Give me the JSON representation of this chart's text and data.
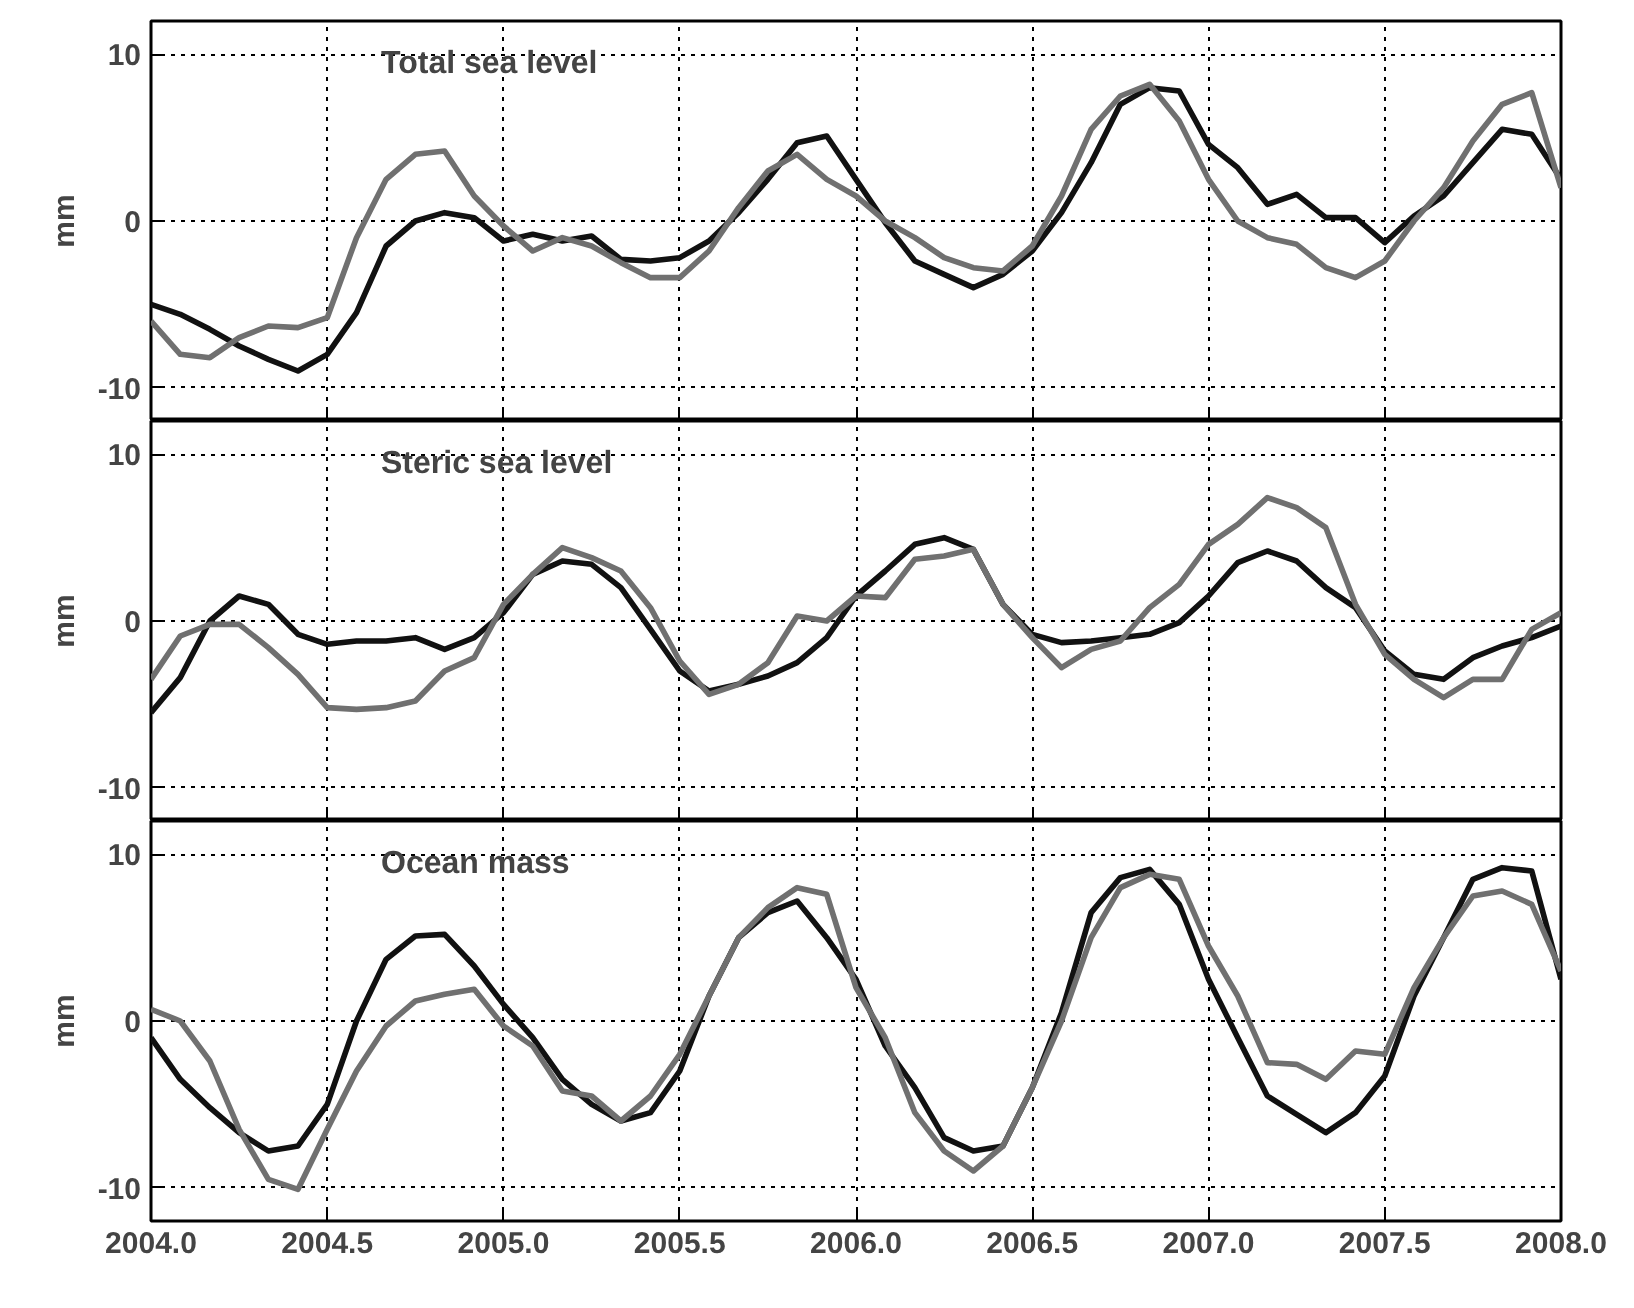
{
  "chart_data": [
    {
      "type": "line",
      "title": "Total sea level",
      "ylabel": "mm",
      "xlim": [
        2004,
        2008
      ],
      "ylim": [
        -12,
        12
      ],
      "yticks": [
        -10,
        0,
        10
      ],
      "xticks": [
        {
          "value": 2004,
          "label": null
        },
        {
          "value": 2004.5,
          "label": null
        },
        {
          "value": 2005,
          "label": null
        },
        {
          "value": 2005.5,
          "label": null
        },
        {
          "value": 2006,
          "label": null
        },
        {
          "value": 2006.5,
          "label": null
        },
        {
          "value": 2007,
          "label": null
        },
        {
          "value": 2007.5,
          "label": null
        },
        {
          "value": 2008,
          "label": null
        }
      ],
      "tick_labels": "y",
      "grid": true,
      "marker": "none",
      "line_style": "solid",
      "x": [
        2004,
        2004.083,
        2004.167,
        2004.25,
        2004.333,
        2004.417,
        2004.5,
        2004.583,
        2004.667,
        2004.75,
        2004.833,
        2004.917,
        2005,
        2005.083,
        2005.167,
        2005.25,
        2005.333,
        2005.417,
        2005.5,
        2005.583,
        2005.667,
        2005.75,
        2005.833,
        2005.917,
        2006,
        2006.083,
        2006.167,
        2006.25,
        2006.333,
        2006.417,
        2006.5,
        2006.583,
        2006.667,
        2006.75,
        2006.833,
        2006.917,
        2007,
        2007.083,
        2007.167,
        2007.25,
        2007.333,
        2007.417,
        2007.5,
        2007.583,
        2007.667,
        2007.75,
        2007.833,
        2007.917,
        2008
      ],
      "series": [
        {
          "color": "#111111",
          "values": [
            -5,
            -5.6,
            -6.5,
            -7.5,
            -8.3,
            -9,
            -8,
            -5.5,
            -1.5,
            0,
            0.5,
            0.2,
            -1.2,
            -0.8,
            -1.2,
            -0.9,
            -2.3,
            -2.4,
            -2.2,
            -1.2,
            0.5,
            2.5,
            4.7,
            5.1,
            2.5,
            -0.1,
            -2.4,
            -3.2,
            -4,
            -3.2,
            -1.8,
            0.5,
            3.5,
            7,
            8,
            7.8,
            4.6,
            3.2,
            1,
            1.6,
            0.2,
            0.2,
            -1.3,
            0.3,
            1.5,
            3.5,
            5.5,
            5.2,
            2.5
          ]
        },
        {
          "color": "#707070",
          "values": [
            -6,
            -8,
            -8.2,
            -7,
            -6.3,
            -6.4,
            -5.8,
            -1,
            2.5,
            4,
            4.2,
            1.5,
            -0.3,
            -1.8,
            -1,
            -1.5,
            -2.5,
            -3.4,
            -3.4,
            -1.8,
            0.8,
            3,
            4,
            2.5,
            1.5,
            0,
            -1,
            -2.2,
            -2.8,
            -3,
            -1.5,
            1.5,
            5.5,
            7.5,
            8.2,
            6,
            2.5,
            0,
            -1,
            -1.4,
            -2.8,
            -3.4,
            -2.4,
            0,
            2,
            4.8,
            7,
            7.7,
            2
          ]
        }
      ]
    },
    {
      "type": "line",
      "title": "Steric sea level",
      "ylabel": "mm",
      "xlim": [
        2004,
        2008
      ],
      "ylim": [
        -12,
        12
      ],
      "yticks": [
        -10,
        0,
        10
      ],
      "xticks": [
        {
          "value": 2004,
          "label": null
        },
        {
          "value": 2004.5,
          "label": null
        },
        {
          "value": 2005,
          "label": null
        },
        {
          "value": 2005.5,
          "label": null
        },
        {
          "value": 2006,
          "label": null
        },
        {
          "value": 2006.5,
          "label": null
        },
        {
          "value": 2007,
          "label": null
        },
        {
          "value": 2007.5,
          "label": null
        },
        {
          "value": 2008,
          "label": null
        }
      ],
      "tick_labels": "y",
      "grid": true,
      "marker": "none",
      "line_style": "solid",
      "x": [
        2004,
        2004.083,
        2004.167,
        2004.25,
        2004.333,
        2004.417,
        2004.5,
        2004.583,
        2004.667,
        2004.75,
        2004.833,
        2004.917,
        2005,
        2005.083,
        2005.167,
        2005.25,
        2005.333,
        2005.417,
        2005.5,
        2005.583,
        2005.667,
        2005.75,
        2005.833,
        2005.917,
        2006,
        2006.083,
        2006.167,
        2006.25,
        2006.333,
        2006.417,
        2006.5,
        2006.583,
        2006.667,
        2006.75,
        2006.833,
        2006.917,
        2007,
        2007.083,
        2007.167,
        2007.25,
        2007.333,
        2007.417,
        2007.5,
        2007.583,
        2007.667,
        2007.75,
        2007.833,
        2007.917,
        2008
      ],
      "series": [
        {
          "color": "#111111",
          "values": [
            -5.5,
            -3.4,
            0,
            1.5,
            1,
            -0.8,
            -1.4,
            -1.2,
            -1.2,
            -1,
            -1.7,
            -1,
            0.5,
            2.8,
            3.6,
            3.4,
            2,
            -0.5,
            -3,
            -4.2,
            -3.8,
            -3.3,
            -2.5,
            -1,
            1.5,
            3,
            4.6,
            5,
            4.3,
            1,
            -0.8,
            -1.3,
            -1.2,
            -1,
            -0.8,
            -0.1,
            1.5,
            3.5,
            4.2,
            3.6,
            2,
            0.8,
            -1.8,
            -3.2,
            -3.5,
            -2.2,
            -1.5,
            -1,
            -0.3
          ]
        },
        {
          "color": "#707070",
          "values": [
            -3.5,
            -0.9,
            -0.2,
            -0.2,
            -1.6,
            -3.2,
            -5.2,
            -5.3,
            -5.2,
            -4.8,
            -3,
            -2.2,
            1,
            2.8,
            4.4,
            3.8,
            3,
            0.8,
            -2.4,
            -4.4,
            -3.8,
            -2.5,
            0.3,
            0,
            1.5,
            1.4,
            3.7,
            3.9,
            4.3,
            1,
            -1,
            -2.8,
            -1.7,
            -1.2,
            0.8,
            2.2,
            4.6,
            5.8,
            7.4,
            6.8,
            5.6,
            1,
            -2,
            -3.5,
            -4.6,
            -3.5,
            -3.5,
            -0.5,
            0.5
          ]
        }
      ]
    },
    {
      "type": "line",
      "title": "Ocean mass",
      "ylabel": "mm",
      "xlim": [
        2004,
        2008
      ],
      "ylim": [
        -12,
        12
      ],
      "yticks": [
        -10,
        0,
        10
      ],
      "xticks": [
        {
          "value": 2004,
          "label": "2004.0"
        },
        {
          "value": 2004.5,
          "label": "2004.5"
        },
        {
          "value": 2005,
          "label": "2005.0"
        },
        {
          "value": 2005.5,
          "label": "2005.5"
        },
        {
          "value": 2006,
          "label": "2006.0"
        },
        {
          "value": 2006.5,
          "label": "2006.5"
        },
        {
          "value": 2007,
          "label": "2007.0"
        },
        {
          "value": 2007.5,
          "label": "2007.5"
        },
        {
          "value": 2008,
          "label": "2008.0"
        }
      ],
      "grid": true,
      "marker": "none",
      "line_style": "solid",
      "x": [
        2004,
        2004.083,
        2004.167,
        2004.25,
        2004.333,
        2004.417,
        2004.5,
        2004.583,
        2004.667,
        2004.75,
        2004.833,
        2004.917,
        2005,
        2005.083,
        2005.167,
        2005.25,
        2005.333,
        2005.417,
        2005.5,
        2005.583,
        2005.667,
        2005.75,
        2005.833,
        2005.917,
        2006,
        2006.083,
        2006.167,
        2006.25,
        2006.333,
        2006.417,
        2006.5,
        2006.583,
        2006.667,
        2006.75,
        2006.833,
        2006.917,
        2007,
        2007.083,
        2007.167,
        2007.25,
        2007.333,
        2007.417,
        2007.5,
        2007.583,
        2007.667,
        2007.75,
        2007.833,
        2007.917,
        2008
      ],
      "series": [
        {
          "color": "#111111",
          "values": [
            -1,
            -3.5,
            -5.2,
            -6.7,
            -7.8,
            -7.5,
            -5,
            0,
            3.7,
            5.1,
            5.2,
            3.3,
            1,
            -1,
            -3.5,
            -5,
            -6,
            -5.5,
            -3,
            1.5,
            5,
            6.5,
            7.2,
            5,
            2.5,
            -1.5,
            -4,
            -7,
            -7.8,
            -7.5,
            -4,
            0.5,
            6.5,
            8.6,
            9.1,
            7,
            2.5,
            -1,
            -4.5,
            -5.6,
            -6.7,
            -5.5,
            -3.3,
            1.5,
            5,
            8.5,
            9.2,
            9,
            2.5
          ]
        },
        {
          "color": "#707070",
          "values": [
            0.7,
            0,
            -2.4,
            -6.5,
            -9.5,
            -10.1,
            -6.5,
            -3,
            -0.3,
            1.2,
            1.6,
            1.9,
            -0.3,
            -1.5,
            -4.2,
            -4.5,
            -6,
            -4.5,
            -2,
            1.5,
            5,
            6.8,
            8,
            7.6,
            2,
            -1,
            -5.5,
            -7.8,
            -9,
            -7.5,
            -4,
            0,
            5,
            8,
            8.8,
            8.5,
            4.5,
            1.5,
            -2.5,
            -2.6,
            -3.5,
            -1.8,
            -2,
            2,
            5,
            7.5,
            7.8,
            7,
            3
          ]
        }
      ]
    }
  ]
}
